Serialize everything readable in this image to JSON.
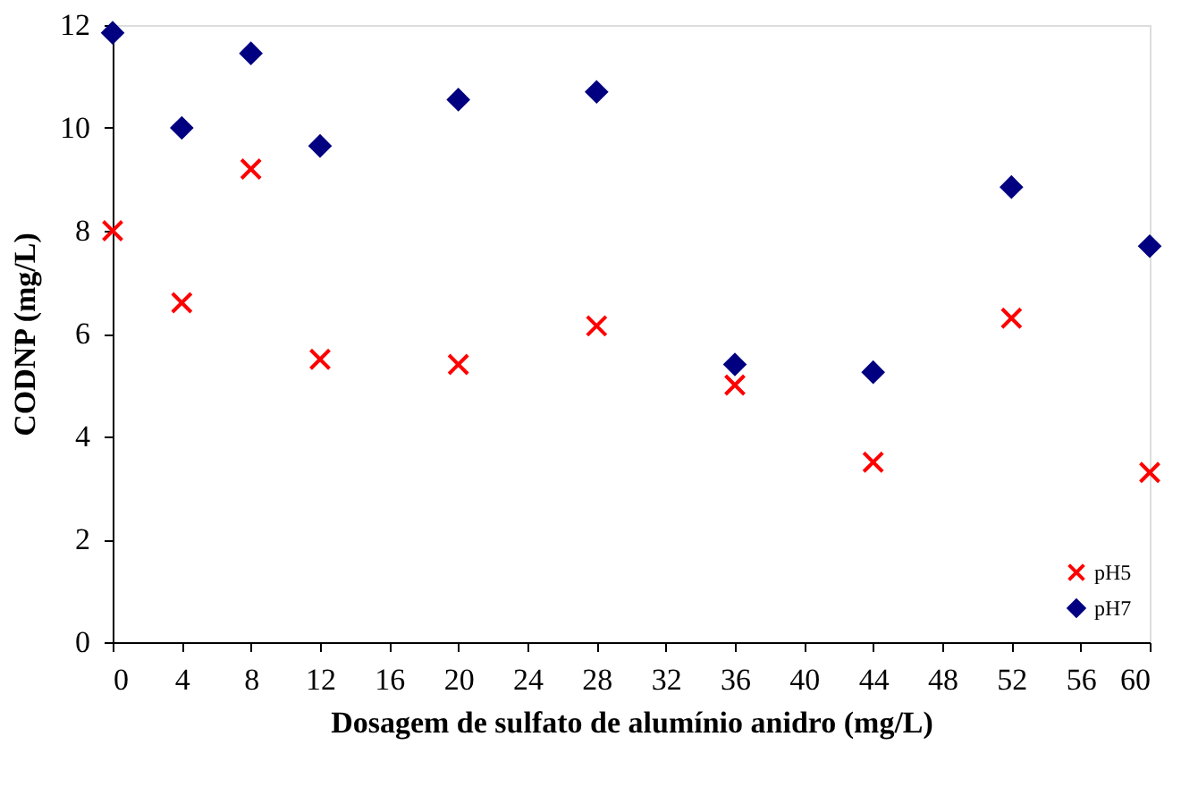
{
  "chart_data": {
    "type": "scatter",
    "xlabel": "Dosagem de sulfato de alumínio anidro (mg/L)",
    "ylabel": "CODNP (mg/L)",
    "x": [
      0,
      4,
      8,
      12,
      20,
      28,
      36,
      44,
      52,
      60
    ],
    "series": [
      {
        "name": "pH5",
        "color": "#ff0000",
        "marker": "cross",
        "values": [
          8.0,
          6.6,
          9.2,
          5.5,
          5.4,
          6.15,
          5.0,
          3.5,
          6.3,
          3.3
        ]
      },
      {
        "name": "pH7",
        "color": "#000080",
        "marker": "diamond",
        "values": [
          11.85,
          10.0,
          11.45,
          9.65,
          10.55,
          10.7,
          5.4,
          5.25,
          8.85,
          7.7
        ]
      }
    ],
    "xlim": [
      0,
      60
    ],
    "xticks": [
      0,
      4,
      8,
      12,
      16,
      20,
      24,
      28,
      32,
      36,
      40,
      44,
      48,
      52,
      56,
      60
    ],
    "ylim": [
      0,
      12
    ],
    "yticks": [
      0,
      2,
      4,
      6,
      8,
      10,
      12
    ],
    "grid": false,
    "legend": "bottom right"
  }
}
